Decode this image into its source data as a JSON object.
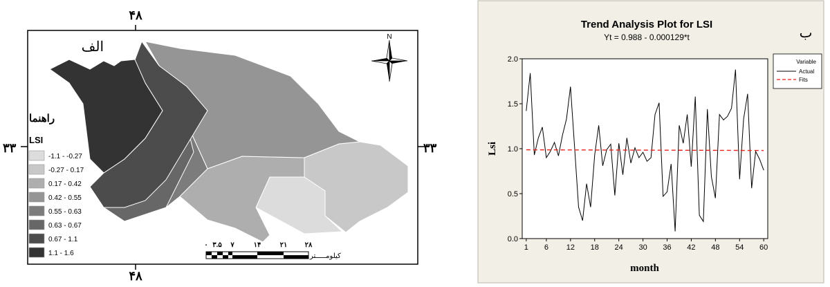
{
  "map": {
    "panel_letter": "الف",
    "longitude_label": "۴۸",
    "latitude_label": "۳۳",
    "north_label": "N",
    "legend_title": "راهنما",
    "legend_subtitle": "LSI",
    "legend_items": [
      {
        "label": "-1.1 - -0.27",
        "color": "#dcdcdc"
      },
      {
        "label": "-0.27 - 0.17",
        "color": "#c8c8c8"
      },
      {
        "label": "0.17 - 0.42",
        "color": "#aeaeae"
      },
      {
        "label": "0.42 - 0.55",
        "color": "#959595"
      },
      {
        "label": "0.55 - 0.63",
        "color": "#7c7c7c"
      },
      {
        "label": "0.63 - 0.67",
        "color": "#676767"
      },
      {
        "label": "0.67 - 1.1",
        "color": "#4c4c4c"
      },
      {
        "label": "1.1 - 1.6",
        "color": "#333333"
      }
    ],
    "scale_ticks": [
      "۰",
      "۳.۵",
      "۷",
      "۱۴",
      "۲۱",
      "۲۸"
    ],
    "scale_unit": "کیلومـــــتر"
  },
  "chart_data": {
    "type": "line",
    "panel_letter": "ب",
    "title": "Trend Analysis Plot for LSI",
    "subtitle": "Yt = 0.988 - 0.000129*t",
    "xlabel": "month",
    "ylabel": "Lsi",
    "xlim": [
      0,
      61
    ],
    "ylim": [
      0,
      2.0
    ],
    "x_ticks": [
      1,
      6,
      12,
      18,
      24,
      30,
      36,
      42,
      48,
      54,
      60
    ],
    "y_ticks": [
      0.0,
      0.5,
      1.0,
      1.5,
      2.0
    ],
    "y_tick_labels": [
      "0.0",
      "0.5",
      "1.0",
      "1.5",
      "2.0"
    ],
    "legend": {
      "title": "Variable",
      "placement": "top-right",
      "entries": [
        "Actual",
        "Fits"
      ]
    },
    "series": [
      {
        "name": "Actual",
        "color": "#000000",
        "style": "solid",
        "x": [
          1,
          2,
          3,
          4,
          5,
          6,
          7,
          8,
          9,
          10,
          11,
          12,
          13,
          14,
          15,
          16,
          17,
          18,
          19,
          20,
          21,
          22,
          23,
          24,
          25,
          26,
          27,
          28,
          29,
          30,
          31,
          32,
          33,
          34,
          35,
          36,
          37,
          38,
          39,
          40,
          41,
          42,
          43,
          44,
          45,
          46,
          47,
          48,
          49,
          50,
          51,
          52,
          53,
          54,
          55,
          56,
          57,
          58,
          59,
          60
        ],
        "y": [
          1.42,
          1.84,
          0.93,
          1.12,
          1.24,
          0.9,
          0.97,
          1.07,
          0.92,
          1.15,
          1.33,
          1.69,
          1.02,
          0.35,
          0.2,
          0.61,
          0.35,
          0.93,
          1.26,
          0.81,
          0.99,
          1.05,
          0.48,
          1.06,
          0.71,
          1.12,
          0.84,
          1.01,
          0.9,
          0.96,
          0.86,
          0.9,
          1.38,
          1.51,
          0.47,
          0.52,
          0.83,
          0.08,
          1.26,
          1.06,
          1.38,
          0.8,
          1.58,
          0.26,
          0.19,
          1.44,
          0.69,
          0.45,
          1.38,
          1.32,
          1.36,
          1.45,
          1.88,
          0.66,
          1.33,
          1.61,
          0.56,
          0.97,
          0.88,
          0.76
        ]
      },
      {
        "name": "Fits",
        "color": "#e8231a",
        "style": "dashed",
        "x": [
          1,
          60
        ],
        "y": [
          0.988,
          0.98
        ]
      }
    ]
  }
}
